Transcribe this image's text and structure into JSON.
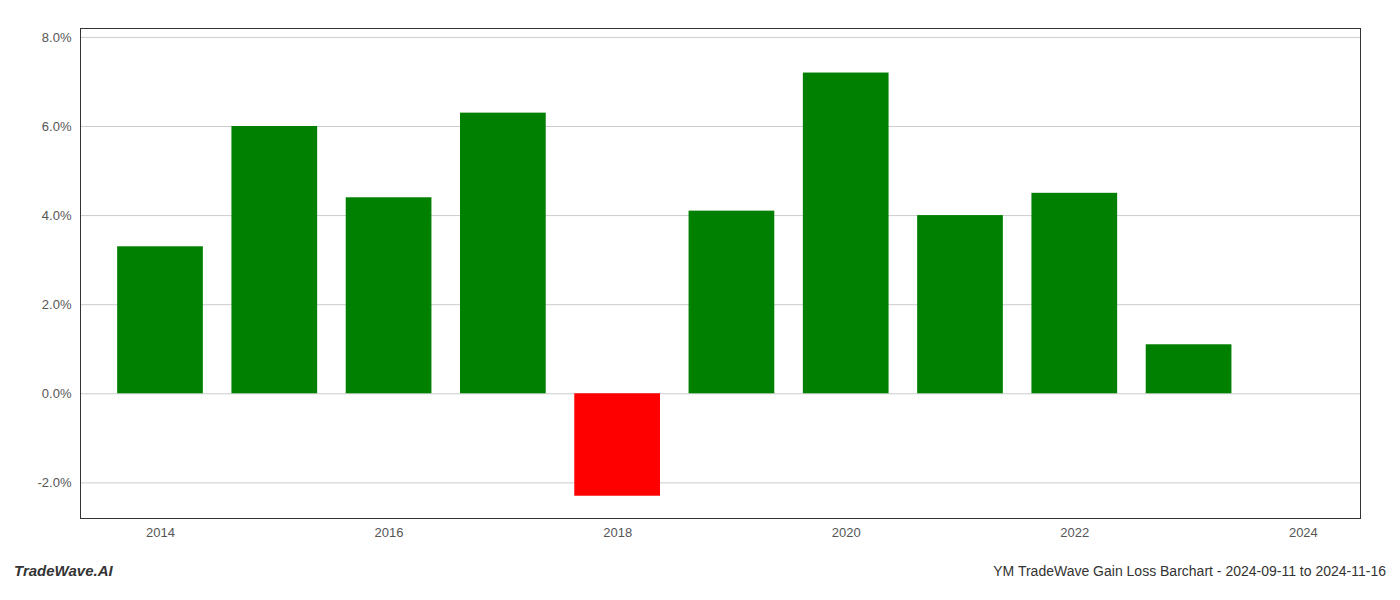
{
  "chart_data": {
    "type": "bar",
    "title": "YM TradeWave Gain Loss Barchart - 2024-09-11 to 2024-11-16",
    "annotations": [
      "TradeWave.AI"
    ],
    "x": [
      2014,
      2015,
      2016,
      2017,
      2018,
      2019,
      2020,
      2021,
      2022,
      2023
    ],
    "values": [
      0.033,
      0.06,
      0.044,
      0.063,
      -0.023,
      0.041,
      0.072,
      0.04,
      0.045,
      0.011
    ],
    "colors": [
      "#008000",
      "#008000",
      "#008000",
      "#008000",
      "#ff0000",
      "#008000",
      "#008000",
      "#008000",
      "#008000",
      "#008000"
    ],
    "xlim": [
      2013.3,
      2024.5
    ],
    "xticks": [
      2014,
      2016,
      2018,
      2020,
      2022,
      2024
    ],
    "ylim": [
      -0.028,
      0.082
    ],
    "yticks": [
      {
        "value": -0.02,
        "label": "-2.0%"
      },
      {
        "value": 0.0,
        "label": "0.0%"
      },
      {
        "value": 0.02,
        "label": "2.0%"
      },
      {
        "value": 0.04,
        "label": "4.0%"
      },
      {
        "value": 0.06,
        "label": "6.0%"
      },
      {
        "value": 0.08,
        "label": "8.0%"
      }
    ],
    "grid": true
  }
}
